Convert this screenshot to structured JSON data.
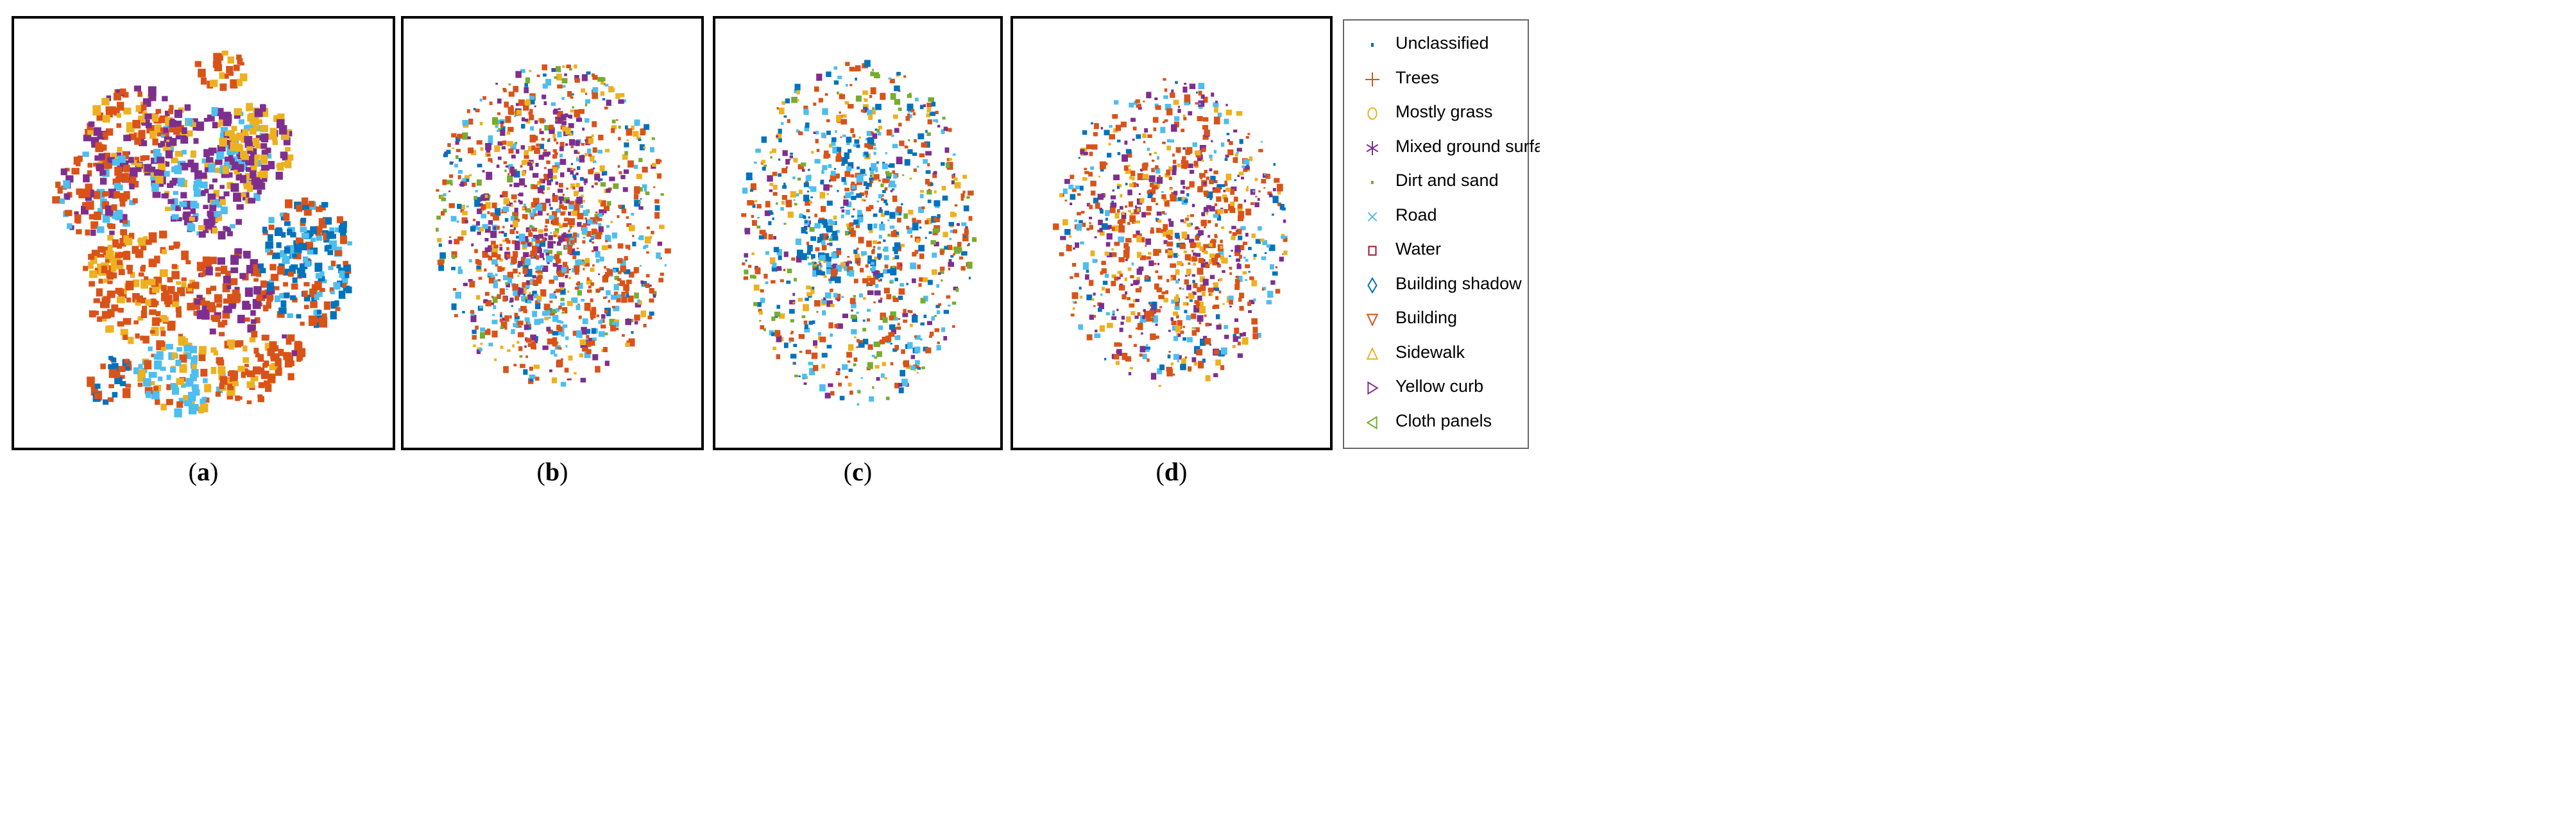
{
  "chart_data": {
    "type": "scatter",
    "legend_position": "right",
    "colors": {
      "Unclassified": "#0072bd",
      "Trees": "#d95319",
      "Mostly grass": "#edb120",
      "Mixed ground surface": "#7e2f8e",
      "Dirt and sand": "#77ac30",
      "Road": "#4dbeee",
      "Water": "#a2142f",
      "Building shadow": "#0072bd",
      "Building": "#d95319",
      "Sidewalk": "#edb120",
      "Yellow curb": "#7e2f8e",
      "Cloth panels": "#77ac30"
    },
    "legend": [
      {
        "name": "Unclassified",
        "marker": "point",
        "color": "#0072bd"
      },
      {
        "name": "Trees",
        "marker": "plus",
        "color": "#d95319"
      },
      {
        "name": "Mostly grass",
        "marker": "circle",
        "color": "#edb120"
      },
      {
        "name": "Mixed ground surface",
        "marker": "asterisk",
        "color": "#7e2f8e"
      },
      {
        "name": "Dirt and sand",
        "marker": "dot",
        "color": "#77ac30"
      },
      {
        "name": "Road",
        "marker": "x",
        "color": "#4dbeee"
      },
      {
        "name": "Water",
        "marker": "square",
        "color": "#a2142f"
      },
      {
        "name": "Building shadow",
        "marker": "diamond",
        "color": "#0072bd"
      },
      {
        "name": "Building",
        "marker": "triangle-down",
        "color": "#d95319"
      },
      {
        "name": "Sidewalk",
        "marker": "triangle-up",
        "color": "#edb120"
      },
      {
        "name": "Yellow curb",
        "marker": "triangle-right",
        "color": "#7e2f8e"
      },
      {
        "name": "Cloth panels",
        "marker": "triangle-left",
        "color": "#77ac30"
      }
    ],
    "panels": [
      {
        "label": "a",
        "clusters": [
          {
            "cx": 0.32,
            "cy": 0.27,
            "rx": 0.13,
            "ry": 0.11,
            "colors": [
              "#d95319",
              "#7e2f8e",
              "#edb120"
            ]
          },
          {
            "cx": 0.52,
            "cy": 0.35,
            "rx": 0.16,
            "ry": 0.16,
            "colors": [
              "#7e2f8e",
              "#4dbeee",
              "#edb120"
            ]
          },
          {
            "cx": 0.64,
            "cy": 0.3,
            "rx": 0.1,
            "ry": 0.1,
            "colors": [
              "#edb120",
              "#7e2f8e"
            ]
          },
          {
            "cx": 0.22,
            "cy": 0.41,
            "rx": 0.11,
            "ry": 0.1,
            "colors": [
              "#d95319",
              "#7e2f8e",
              "#4dbeee"
            ]
          },
          {
            "cx": 0.33,
            "cy": 0.62,
            "rx": 0.15,
            "ry": 0.13,
            "colors": [
              "#d95319",
              "#edb120"
            ]
          },
          {
            "cx": 0.57,
            "cy": 0.64,
            "rx": 0.11,
            "ry": 0.1,
            "colors": [
              "#d95319",
              "#7e2f8e"
            ]
          },
          {
            "cx": 0.77,
            "cy": 0.57,
            "rx": 0.13,
            "ry": 0.15,
            "colors": [
              "#0072bd",
              "#d95319",
              "#4dbeee"
            ]
          },
          {
            "cx": 0.44,
            "cy": 0.83,
            "rx": 0.12,
            "ry": 0.09,
            "colors": [
              "#4dbeee",
              "#edb120",
              "#d95319"
            ]
          },
          {
            "cx": 0.62,
            "cy": 0.81,
            "rx": 0.08,
            "ry": 0.09,
            "colors": [
              "#d95319",
              "#edb120"
            ]
          },
          {
            "cx": 0.26,
            "cy": 0.84,
            "rx": 0.06,
            "ry": 0.06,
            "colors": [
              "#d95319",
              "#0072bd"
            ]
          },
          {
            "cx": 0.55,
            "cy": 0.12,
            "rx": 0.07,
            "ry": 0.04,
            "colors": [
              "#d95319",
              "#edb120"
            ]
          },
          {
            "cx": 0.72,
            "cy": 0.79,
            "rx": 0.05,
            "ry": 0.05,
            "colors": [
              "#d95319",
              "#7e2f8e"
            ]
          }
        ]
      },
      {
        "label": "b",
        "clusters": [
          {
            "cx": 0.5,
            "cy": 0.48,
            "rx": 0.4,
            "ry": 0.38,
            "colors": [
              "#d95319",
              "#7e2f8e",
              "#4dbeee",
              "#edb120",
              "#0072bd",
              "#77ac30"
            ]
          },
          {
            "cx": 0.46,
            "cy": 0.42,
            "rx": 0.22,
            "ry": 0.24,
            "colors": [
              "#7e2f8e",
              "#d95319",
              "#edb120"
            ]
          },
          {
            "cx": 0.52,
            "cy": 0.6,
            "rx": 0.24,
            "ry": 0.18,
            "colors": [
              "#d95319",
              "#4dbeee"
            ]
          }
        ]
      },
      {
        "label": "c",
        "clusters": [
          {
            "cx": 0.5,
            "cy": 0.5,
            "rx": 0.41,
            "ry": 0.4,
            "colors": [
              "#d95319",
              "#0072bd",
              "#4dbeee",
              "#edb120",
              "#7e2f8e",
              "#77ac30"
            ]
          },
          {
            "cx": 0.48,
            "cy": 0.46,
            "rx": 0.18,
            "ry": 0.2,
            "colors": [
              "#0072bd",
              "#4dbeee",
              "#d95319"
            ]
          }
        ]
      },
      {
        "label": "d",
        "clusters": [
          {
            "cx": 0.5,
            "cy": 0.5,
            "rx": 0.37,
            "ry": 0.36,
            "colors": [
              "#d95319",
              "#7e2f8e",
              "#4dbeee",
              "#edb120",
              "#0072bd"
            ]
          },
          {
            "cx": 0.52,
            "cy": 0.52,
            "rx": 0.22,
            "ry": 0.22,
            "colors": [
              "#d95319",
              "#edb120",
              "#7e2f8e"
            ]
          }
        ]
      }
    ]
  }
}
